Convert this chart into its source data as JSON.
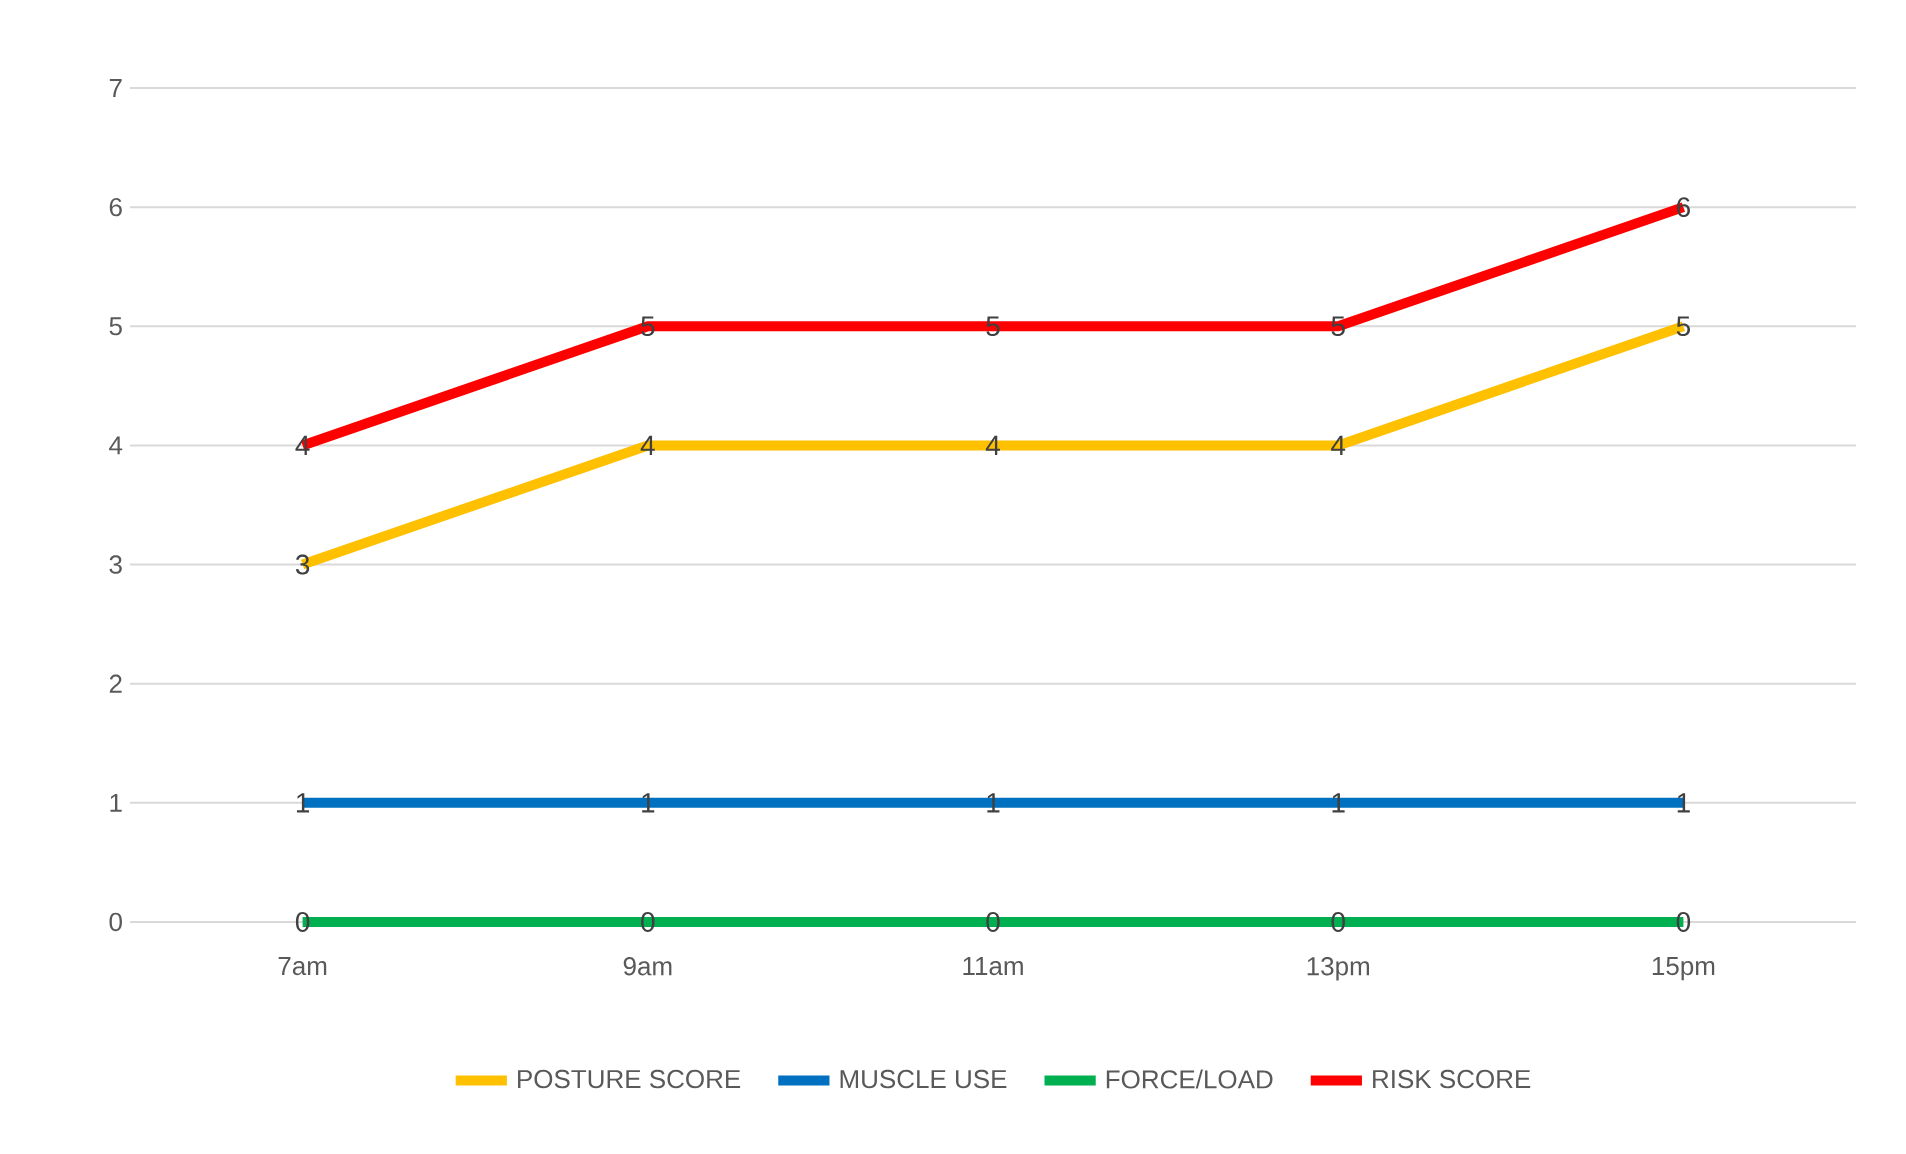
{
  "chart_data": {
    "type": "line",
    "categories": [
      "7am",
      "9am",
      "11am",
      "13pm",
      "15pm"
    ],
    "series": [
      {
        "name": "POSTURE SCORE",
        "color": "#ffc000",
        "values": [
          3,
          4,
          4,
          4,
          5
        ]
      },
      {
        "name": "MUSCLE USE",
        "color": "#0070c0",
        "values": [
          1,
          1,
          1,
          1,
          1
        ]
      },
      {
        "name": "FORCE/LOAD",
        "color": "#00b050",
        "values": [
          0,
          0,
          0,
          0,
          0
        ]
      },
      {
        "name": "RISK SCORE",
        "color": "#ff0000",
        "values": [
          4,
          5,
          5,
          5,
          6
        ]
      }
    ],
    "ylim": [
      0,
      7
    ],
    "yticks": [
      0,
      1,
      2,
      3,
      4,
      5,
      6,
      7
    ],
    "grid": "y",
    "legend": "bottom",
    "data_labels": true,
    "marker": "none",
    "line_style": "solid"
  }
}
